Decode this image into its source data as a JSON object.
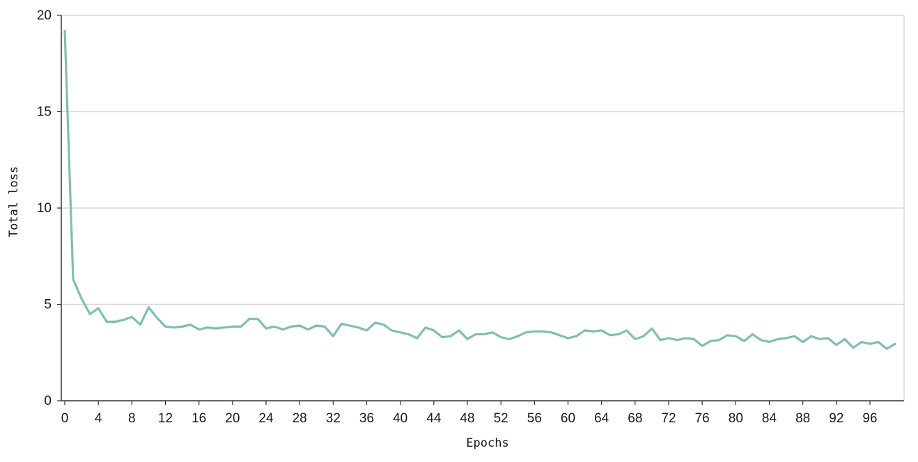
{
  "chart_data": {
    "type": "line",
    "title": "",
    "xlabel": "Epochs",
    "ylabel": "Total loss",
    "xlim": [
      0,
      99
    ],
    "ylim": [
      0,
      20
    ],
    "x_ticks": [
      0,
      4,
      8,
      12,
      16,
      20,
      24,
      28,
      32,
      36,
      40,
      44,
      48,
      52,
      56,
      60,
      64,
      68,
      72,
      76,
      80,
      84,
      88,
      92,
      96
    ],
    "y_ticks": [
      0,
      5,
      10,
      15,
      20
    ],
    "grid": "horizontal",
    "series": [
      {
        "color": "#7fbfad",
        "x": [
          0,
          1,
          2,
          3,
          4,
          5,
          6,
          7,
          8,
          9,
          10,
          11,
          12,
          13,
          14,
          15,
          16,
          17,
          18,
          19,
          20,
          21,
          22,
          23,
          24,
          25,
          26,
          27,
          28,
          29,
          30,
          31,
          32,
          33,
          34,
          35,
          36,
          37,
          38,
          39,
          40,
          41,
          42,
          43,
          44,
          45,
          46,
          47,
          48,
          49,
          50,
          51,
          52,
          53,
          54,
          55,
          56,
          57,
          58,
          59,
          60,
          61,
          62,
          63,
          64,
          65,
          66,
          67,
          68,
          69,
          70,
          71,
          72,
          73,
          74,
          75,
          76,
          77,
          78,
          79,
          80,
          81,
          82,
          83,
          84,
          85,
          86,
          87,
          88,
          89,
          90,
          91,
          92,
          93,
          94,
          95,
          96,
          97,
          98,
          99
        ],
        "values": [
          19.2,
          6.3,
          5.3,
          4.5,
          4.8,
          4.1,
          4.1,
          4.2,
          4.35,
          3.95,
          4.85,
          4.3,
          3.85,
          3.8,
          3.85,
          3.95,
          3.7,
          3.8,
          3.75,
          3.8,
          3.85,
          3.85,
          4.25,
          4.25,
          3.75,
          3.85,
          3.7,
          3.85,
          3.9,
          3.7,
          3.9,
          3.85,
          3.35,
          4.0,
          3.9,
          3.8,
          3.65,
          4.05,
          3.95,
          3.65,
          3.55,
          3.45,
          3.25,
          3.8,
          3.65,
          3.3,
          3.35,
          3.65,
          3.2,
          3.45,
          3.45,
          3.55,
          3.3,
          3.2,
          3.35,
          3.55,
          3.6,
          3.6,
          3.55,
          3.4,
          3.25,
          3.35,
          3.65,
          3.6,
          3.65,
          3.4,
          3.45,
          3.65,
          3.2,
          3.35,
          3.75,
          3.15,
          3.25,
          3.15,
          3.25,
          3.2,
          2.85,
          3.1,
          3.15,
          3.4,
          3.35,
          3.1,
          3.45,
          3.15,
          3.05,
          3.2,
          3.25,
          3.35,
          3.05,
          3.35,
          3.2,
          3.25,
          2.9,
          3.2,
          2.75,
          3.05,
          2.95,
          3.05,
          2.7,
          2.95
        ]
      }
    ]
  }
}
